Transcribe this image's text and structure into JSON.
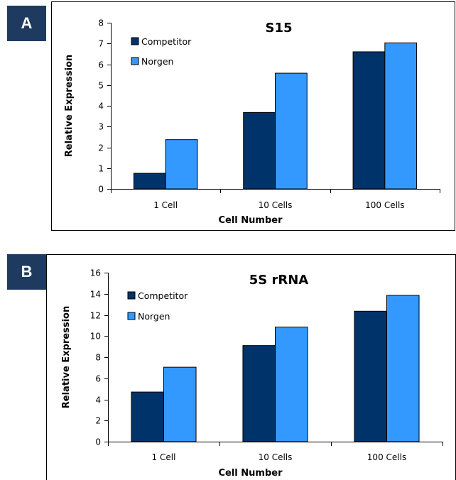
{
  "panels": [
    {
      "label": "A"
    },
    {
      "label": "B"
    }
  ],
  "chart_data": [
    {
      "type": "bar",
      "title": "S15",
      "xlabel": "Cell Number",
      "ylabel": "Relative Expression",
      "categories": [
        "1 Cell",
        "10 Cells",
        "100 Cells"
      ],
      "ylim": [
        0,
        8
      ],
      "yticks": [
        0,
        1,
        2,
        3,
        4,
        5,
        6,
        7,
        8
      ],
      "legend_position": "top-left",
      "series": [
        {
          "name": "Competitor",
          "color": "#00336a",
          "values": [
            0.75,
            3.68,
            6.6
          ]
        },
        {
          "name": "Norgen",
          "color": "#3399ff",
          "values": [
            2.37,
            5.57,
            7.03
          ]
        }
      ]
    },
    {
      "type": "bar",
      "title": "5S rRNA",
      "xlabel": "Cell Number",
      "ylabel": "Relative Expression",
      "categories": [
        "1 Cell",
        "10 Cells",
        "100 Cells"
      ],
      "ylim": [
        0,
        16
      ],
      "yticks": [
        0,
        2,
        4,
        6,
        8,
        10,
        12,
        14,
        16
      ],
      "legend_position": "top-left",
      "series": [
        {
          "name": "Competitor",
          "color": "#00336a",
          "values": [
            4.7,
            9.1,
            12.35
          ]
        },
        {
          "name": "Norgen",
          "color": "#3399ff",
          "values": [
            7.05,
            10.85,
            13.85
          ]
        }
      ]
    }
  ]
}
